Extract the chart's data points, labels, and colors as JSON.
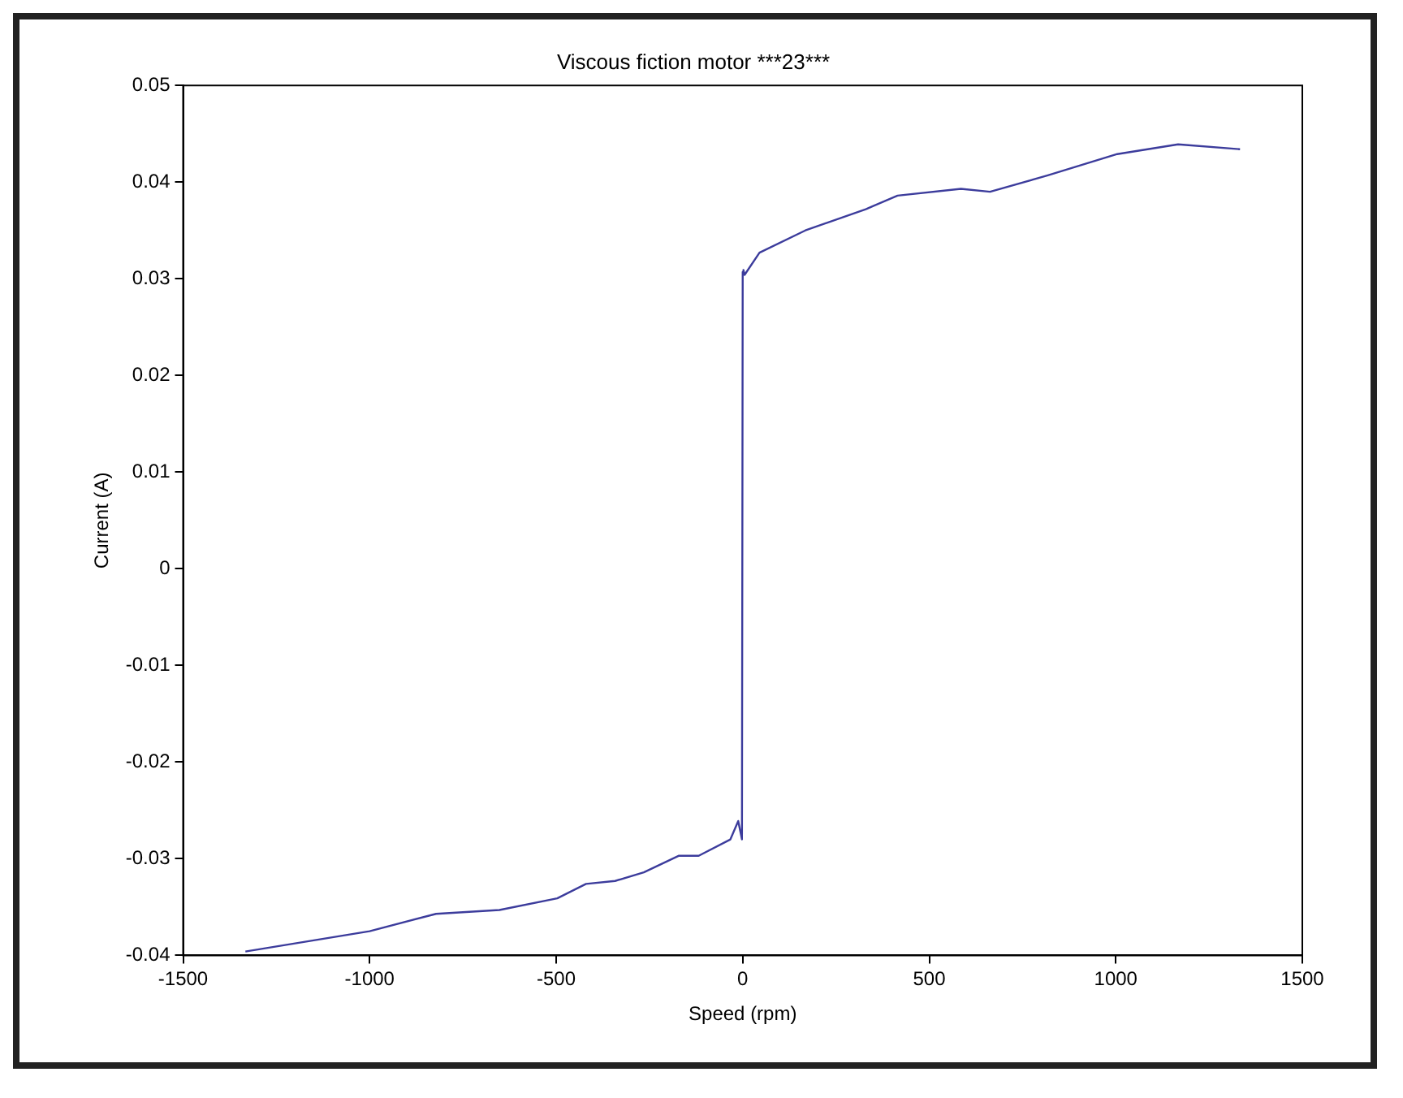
{
  "chart_data": {
    "type": "line",
    "title": "Viscous fiction motor ***23***",
    "xlabel": "Speed (rpm)",
    "ylabel": "Current (A)",
    "x": [
      -1333,
      -1000,
      -822,
      -652,
      -497,
      -420,
      -342,
      -265,
      -172,
      -118,
      -33,
      -12,
      -2,
      0,
      2,
      5,
      45,
      168,
      330,
      415,
      585,
      663,
      818,
      1004,
      1167,
      1333
    ],
    "series": [
      {
        "color": "#3c3c9c",
        "values": [
          -0.0396,
          -0.0375,
          -0.0357,
          -0.0353,
          -0.0341,
          -0.0326,
          -0.0323,
          -0.0314,
          -0.0297,
          -0.0297,
          -0.028,
          -0.0261,
          -0.028,
          0.0307,
          0.0309,
          0.0304,
          0.0327,
          0.035,
          0.0372,
          0.0386,
          0.0393,
          0.039,
          0.0407,
          0.0429,
          0.0439,
          0.0434
        ]
      }
    ],
    "xlim": [
      -1500,
      1500
    ],
    "xticks": [
      -1500,
      -1000,
      -500,
      0,
      500,
      1000,
      1500
    ],
    "ylim": [
      -0.04,
      0.05
    ],
    "yticks": [
      -0.04,
      -0.03,
      -0.02,
      -0.01,
      0,
      0.01,
      0.02,
      0.03,
      0.04,
      0.05
    ],
    "grid": false,
    "legend": false,
    "marker": "none",
    "line_style": "solid"
  }
}
